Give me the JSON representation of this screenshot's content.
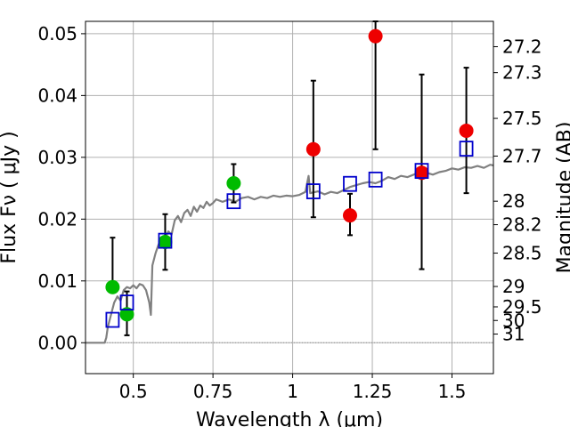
{
  "chart_data": {
    "type": "scatter",
    "title": "",
    "xlabel": "Wavelength  λ (μm)",
    "ylabel": "Flux  Fν  ( μJy )",
    "y2label": "Magnitude (AB)",
    "xlim": [
      0.35,
      1.63
    ],
    "ylim": [
      -0.005,
      0.052
    ],
    "grid": true,
    "x_ticks": [
      0.5,
      0.75,
      1.0,
      1.25,
      1.5
    ],
    "x_tick_labels": [
      "0.5",
      "0.75",
      "1",
      "1.25",
      "1.5"
    ],
    "y_ticks": [
      0.0,
      0.01,
      0.02,
      0.03,
      0.04,
      0.05
    ],
    "y_tick_labels": [
      "0.00",
      "0.01",
      "0.02",
      "0.03",
      "0.04",
      "0.05"
    ],
    "mag_ticks": [
      {
        "label": "27.2",
        "flux": 0.0479
      },
      {
        "label": "27.3",
        "flux": 0.0437
      },
      {
        "label": "27.5",
        "flux": 0.0363
      },
      {
        "label": "27.7",
        "flux": 0.0302
      },
      {
        "label": "28",
        "flux": 0.0229
      },
      {
        "label": "28.2",
        "flux": 0.0191
      },
      {
        "label": "28.5",
        "flux": 0.0145
      },
      {
        "label": "29",
        "flux": 0.0091
      },
      {
        "label": "29.5",
        "flux": 0.0058
      },
      {
        "label": "30",
        "flux": 0.0036
      },
      {
        "label": "31",
        "flux": 0.0014
      }
    ],
    "series": [
      {
        "name": "model SED",
        "kind": "line",
        "color": "#808080",
        "points": [
          [
            0.35,
            0.0
          ],
          [
            0.41,
            0.0
          ],
          [
            0.415,
            0.0008
          ],
          [
            0.42,
            0.0025
          ],
          [
            0.43,
            0.0045
          ],
          [
            0.44,
            0.0065
          ],
          [
            0.45,
            0.0075
          ],
          [
            0.46,
            0.0068
          ],
          [
            0.47,
            0.0085
          ],
          [
            0.48,
            0.009
          ],
          [
            0.49,
            0.0088
          ],
          [
            0.5,
            0.0093
          ],
          [
            0.51,
            0.0088
          ],
          [
            0.52,
            0.0095
          ],
          [
            0.53,
            0.0093
          ],
          [
            0.54,
            0.0085
          ],
          [
            0.55,
            0.0065
          ],
          [
            0.555,
            0.0045
          ],
          [
            0.56,
            0.0125
          ],
          [
            0.57,
            0.0145
          ],
          [
            0.58,
            0.016
          ],
          [
            0.59,
            0.0165
          ],
          [
            0.6,
            0.017
          ],
          [
            0.61,
            0.018
          ],
          [
            0.62,
            0.0175
          ],
          [
            0.63,
            0.0198
          ],
          [
            0.64,
            0.0205
          ],
          [
            0.65,
            0.0195
          ],
          [
            0.66,
            0.021
          ],
          [
            0.67,
            0.0215
          ],
          [
            0.68,
            0.0205
          ],
          [
            0.69,
            0.022
          ],
          [
            0.7,
            0.0212
          ],
          [
            0.71,
            0.0222
          ],
          [
            0.72,
            0.0218
          ],
          [
            0.73,
            0.0228
          ],
          [
            0.74,
            0.0222
          ],
          [
            0.75,
            0.0226
          ],
          [
            0.76,
            0.0232
          ],
          [
            0.78,
            0.0228
          ],
          [
            0.8,
            0.0232
          ],
          [
            0.82,
            0.0228
          ],
          [
            0.84,
            0.0234
          ],
          [
            0.86,
            0.0236
          ],
          [
            0.88,
            0.0232
          ],
          [
            0.9,
            0.0236
          ],
          [
            0.92,
            0.0234
          ],
          [
            0.94,
            0.0238
          ],
          [
            0.96,
            0.0236
          ],
          [
            0.98,
            0.0238
          ],
          [
            1.0,
            0.0237
          ],
          [
            1.02,
            0.0239
          ],
          [
            1.04,
            0.0244
          ],
          [
            1.05,
            0.027
          ],
          [
            1.055,
            0.0242
          ],
          [
            1.08,
            0.0245
          ],
          [
            1.1,
            0.024
          ],
          [
            1.12,
            0.0244
          ],
          [
            1.14,
            0.0242
          ],
          [
            1.16,
            0.0247
          ],
          [
            1.18,
            0.0252
          ],
          [
            1.2,
            0.0255
          ],
          [
            1.22,
            0.0258
          ],
          [
            1.24,
            0.026
          ],
          [
            1.26,
            0.0258
          ],
          [
            1.28,
            0.0262
          ],
          [
            1.3,
            0.0268
          ],
          [
            1.32,
            0.0265
          ],
          [
            1.34,
            0.027
          ],
          [
            1.36,
            0.0268
          ],
          [
            1.38,
            0.0272
          ],
          [
            1.4,
            0.0276
          ],
          [
            1.42,
            0.0275
          ],
          [
            1.44,
            0.0272
          ],
          [
            1.46,
            0.0276
          ],
          [
            1.48,
            0.0278
          ],
          [
            1.5,
            0.0282
          ],
          [
            1.52,
            0.028
          ],
          [
            1.54,
            0.0284
          ],
          [
            1.56,
            0.0283
          ],
          [
            1.58,
            0.0286
          ],
          [
            1.6,
            0.0283
          ],
          [
            1.62,
            0.0288
          ],
          [
            1.63,
            0.0287
          ]
        ]
      },
      {
        "name": "model photometry",
        "kind": "open-square",
        "color": "#0000cc",
        "points": [
          [
            0.435,
            0.0037
          ],
          [
            0.48,
            0.0065
          ],
          [
            0.6,
            0.0165
          ],
          [
            0.815,
            0.0229
          ],
          [
            1.065,
            0.0245
          ],
          [
            1.18,
            0.0257
          ],
          [
            1.26,
            0.0264
          ],
          [
            1.405,
            0.0278
          ],
          [
            1.545,
            0.0314
          ]
        ]
      },
      {
        "name": "observed (green)",
        "kind": "point",
        "color": "#00bb00",
        "points": [
          {
            "x": 0.435,
            "y": 0.009,
            "err_lo": 0.009,
            "err_hi": 0.017
          },
          {
            "x": 0.48,
            "y": 0.0046,
            "err_lo": 0.0012,
            "err_hi": 0.0083
          },
          {
            "x": 0.6,
            "y": 0.0163,
            "err_lo": 0.0118,
            "err_hi": 0.0208
          },
          {
            "x": 0.815,
            "y": 0.0258,
            "err_lo": 0.0227,
            "err_hi": 0.0289
          }
        ]
      },
      {
        "name": "observed (red)",
        "kind": "point",
        "color": "#ee0000",
        "points": [
          {
            "x": 1.065,
            "y": 0.0313,
            "err_lo": 0.0203,
            "err_hi": 0.0424
          },
          {
            "x": 1.18,
            "y": 0.0206,
            "err_lo": 0.0174,
            "err_hi": 0.0241
          },
          {
            "x": 1.26,
            "y": 0.0496,
            "err_lo": 0.0313,
            "err_hi": 0.052
          },
          {
            "x": 1.405,
            "y": 0.0275,
            "err_lo": 0.0119,
            "err_hi": 0.0434
          },
          {
            "x": 1.545,
            "y": 0.0343,
            "err_lo": 0.0242,
            "err_hi": 0.0445
          }
        ]
      }
    ]
  }
}
